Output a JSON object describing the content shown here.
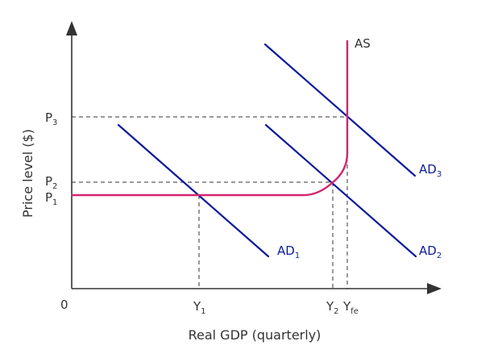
{
  "axes": {
    "x_title": "Real GDP (quarterly)",
    "y_title": "Price level ($)",
    "origin": "0"
  },
  "price_labels": {
    "p1": {
      "base": "P",
      "sub": "1"
    },
    "p2": {
      "base": "P",
      "sub": "2"
    },
    "p3": {
      "base": "P",
      "sub": "3"
    }
  },
  "output_labels": {
    "y1": {
      "base": "Y",
      "sub": "1"
    },
    "y2": {
      "base": "Y",
      "sub": "2"
    },
    "yfe": {
      "base": "Y",
      "sub": "fe"
    }
  },
  "curves": {
    "as": {
      "label": "AS",
      "color": "#d6246e"
    },
    "ad1": {
      "base": "AD",
      "sub": "1",
      "color": "#0e1a9c"
    },
    "ad2": {
      "base": "AD",
      "sub": "2",
      "color": "#0e1a9c"
    },
    "ad3": {
      "base": "AD",
      "sub": "3",
      "color": "#0e1a9c"
    }
  },
  "colors": {
    "axis": "#333333",
    "guide": "#333333"
  }
}
